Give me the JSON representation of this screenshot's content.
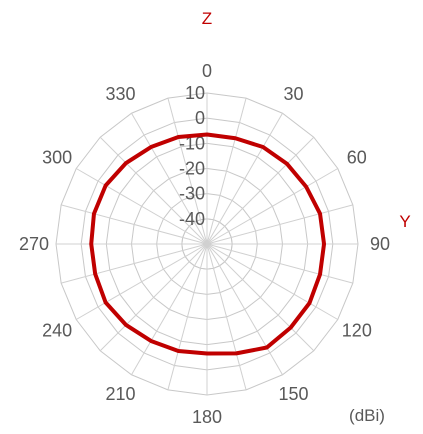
{
  "chart_data": {
    "type": "polar-line",
    "axis_top_label": "Z",
    "axis_right_label": "Y",
    "unit_label": "(dBi)",
    "radial_range": [
      -50,
      10
    ],
    "radial_ticks": [
      10,
      0,
      -10,
      -20,
      -30,
      -40
    ],
    "angular_ticks": [
      0,
      30,
      60,
      90,
      120,
      150,
      180,
      210,
      240,
      270,
      300,
      330
    ],
    "angle_direction": "clockwise",
    "angle_zero": "top",
    "grid": true,
    "series": [
      {
        "color": "#c00000",
        "angles": [
          0,
          15,
          30,
          45,
          60,
          75,
          90,
          105,
          120,
          135,
          150,
          165,
          180,
          195,
          210,
          225,
          240,
          255,
          270,
          285,
          300,
          315,
          330,
          345
        ],
        "values": [
          -6.5,
          -6.5,
          -5.5,
          -5,
          -4.5,
          -3.5,
          -3.5,
          -3.5,
          -3,
          -3,
          -2.5,
          -5,
          -6.5,
          -6,
          -5.5,
          -4.5,
          -3.5,
          -4,
          -4,
          -3.5,
          -3.5,
          -4.5,
          -5.5,
          -6
        ]
      }
    ]
  }
}
